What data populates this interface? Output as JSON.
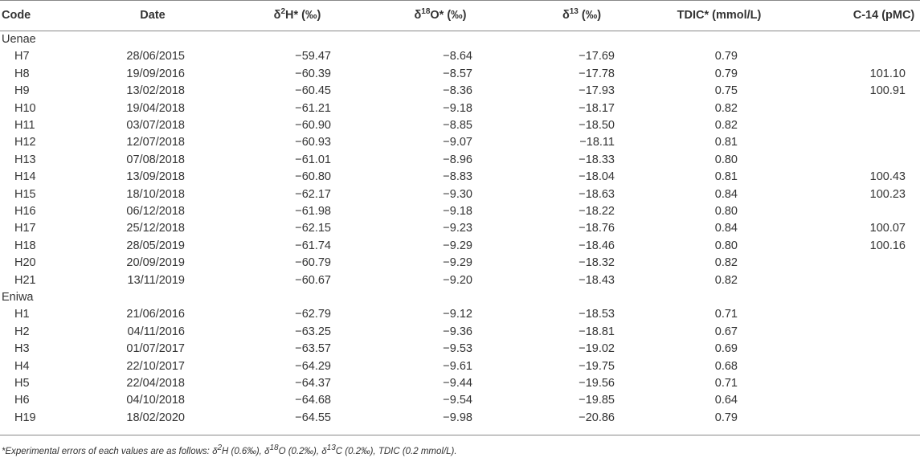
{
  "table": {
    "headers": [
      [
        {
          "text": "Code"
        }
      ],
      [
        {
          "text": "Date"
        }
      ],
      [
        {
          "text": "δ"
        },
        {
          "text": "2",
          "sup": true
        },
        {
          "text": "H* (‰)"
        }
      ],
      [
        {
          "text": "δ"
        },
        {
          "text": "18",
          "sup": true
        },
        {
          "text": "O* (‰)"
        }
      ],
      [
        {
          "text": "δ"
        },
        {
          "text": "13",
          "sup": true
        },
        {
          "text": " (‰)"
        }
      ],
      [
        {
          "text": "TDIC* (mmol/L)"
        }
      ],
      [
        {
          "text": "C-14 (pMC)"
        }
      ]
    ],
    "groups": [
      {
        "name": "Uenae",
        "rows": [
          [
            "H7",
            "28/06/2015",
            "−59.47",
            "−8.64",
            "−17.69",
            "0.79",
            null
          ],
          [
            "H8",
            "19/09/2016",
            "−60.39",
            "−8.57",
            "−17.78",
            "0.79",
            "101.10"
          ],
          [
            "H9",
            "13/02/2018",
            "−60.45",
            "−8.36",
            "−17.93",
            "0.75",
            "100.91"
          ],
          [
            "H10",
            "19/04/2018",
            "−61.21",
            "−9.18",
            "−18.17",
            "0.82",
            null
          ],
          [
            "H11",
            "03/07/2018",
            "−60.90",
            "−8.85",
            "−18.50",
            "0.82",
            null
          ],
          [
            "H12",
            "12/07/2018",
            "−60.93",
            "−9.07",
            "−18.11",
            "0.81",
            null
          ],
          [
            "H13",
            "07/08/2018",
            "−61.01",
            "−8.96",
            "−18.33",
            "0.80",
            null
          ],
          [
            "H14",
            "13/09/2018",
            "−60.80",
            "−8.83",
            "−18.04",
            "0.81",
            "100.43"
          ],
          [
            "H15",
            "18/10/2018",
            "−62.17",
            "−9.30",
            "−18.63",
            "0.84",
            "100.23"
          ],
          [
            "H16",
            "06/12/2018",
            "−61.98",
            "−9.18",
            "−18.22",
            "0.80",
            null
          ],
          [
            "H17",
            "25/12/2018",
            "−62.15",
            "−9.23",
            "−18.76",
            "0.84",
            "100.07"
          ],
          [
            "H18",
            "28/05/2019",
            "−61.74",
            "−9.29",
            "−18.46",
            "0.80",
            "100.16"
          ],
          [
            "H20",
            "20/09/2019",
            "−60.79",
            "−9.29",
            "−18.32",
            "0.82",
            null
          ],
          [
            "H21",
            "13/11/2019",
            "−60.67",
            "−9.20",
            "−18.43",
            "0.82",
            null
          ]
        ]
      },
      {
        "name": "Eniwa",
        "rows": [
          [
            "H1",
            "21/06/2016",
            "−62.79",
            "−9.12",
            "−18.53",
            "0.71",
            null
          ],
          [
            "H2",
            "04/11/2016",
            "−63.25",
            "−9.36",
            "−18.81",
            "0.67",
            null
          ],
          [
            "H3",
            "01/07/2017",
            "−63.57",
            "−9.53",
            "−19.02",
            "0.69",
            null
          ],
          [
            "H4",
            "22/10/2017",
            "−64.29",
            "−9.61",
            "−19.75",
            "0.68",
            null
          ],
          [
            "H5",
            "22/04/2018",
            "−64.37",
            "−9.44",
            "−19.56",
            "0.71",
            null
          ],
          [
            "H6",
            "04/10/2018",
            "−64.68",
            "−9.54",
            "−19.85",
            "0.64",
            null
          ],
          [
            "H19",
            "18/02/2020",
            "−64.55",
            "−9.98",
            "−20.86",
            "0.79",
            null
          ]
        ]
      }
    ],
    "footnote": [
      {
        "text": "*Experimental errors of each values are as follows: δ"
      },
      {
        "text": "2",
        "sup": true
      },
      {
        "text": "H (0.6‰), δ"
      },
      {
        "text": "18",
        "sup": true
      },
      {
        "text": "O (0.2‰), δ"
      },
      {
        "text": "13",
        "sup": true
      },
      {
        "text": "C (0.2‰), TDIC (0.2 mmol/L)."
      }
    ]
  }
}
